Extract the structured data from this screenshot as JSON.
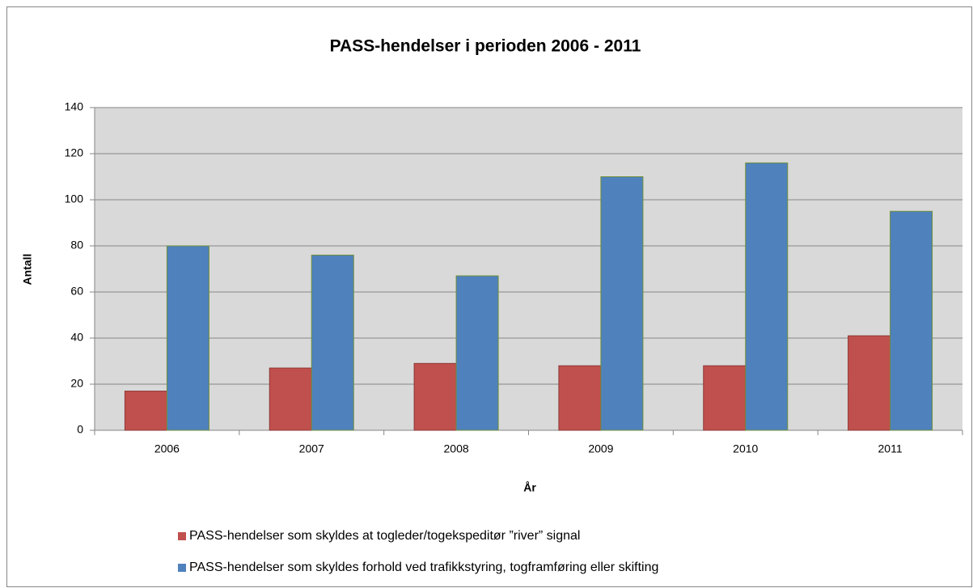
{
  "chart_data": {
    "type": "bar",
    "title": "PASS-hendelser i perioden 2006 - 2011",
    "x_label": "År",
    "y_label": "Antall",
    "categories": [
      "2006",
      "2007",
      "2008",
      "2009",
      "2010",
      "2011"
    ],
    "series": [
      {
        "name": "PASS-hendelser som skyldes at togleder/togekspeditør ”river” signal",
        "color": "#c0504d",
        "values": [
          17,
          27,
          29,
          28,
          28,
          41
        ]
      },
      {
        "name": "PASS-hendelser som skyldes forhold ved trafikkstyring, togframføring eller skifting",
        "color": "#4f81bd",
        "values": [
          80,
          76,
          67,
          110,
          116,
          95
        ]
      }
    ],
    "ylim": [
      0,
      140
    ],
    "yticks": [
      0,
      20,
      40,
      60,
      80,
      100,
      120,
      140
    ],
    "grid": true,
    "legend": "bottom"
  }
}
